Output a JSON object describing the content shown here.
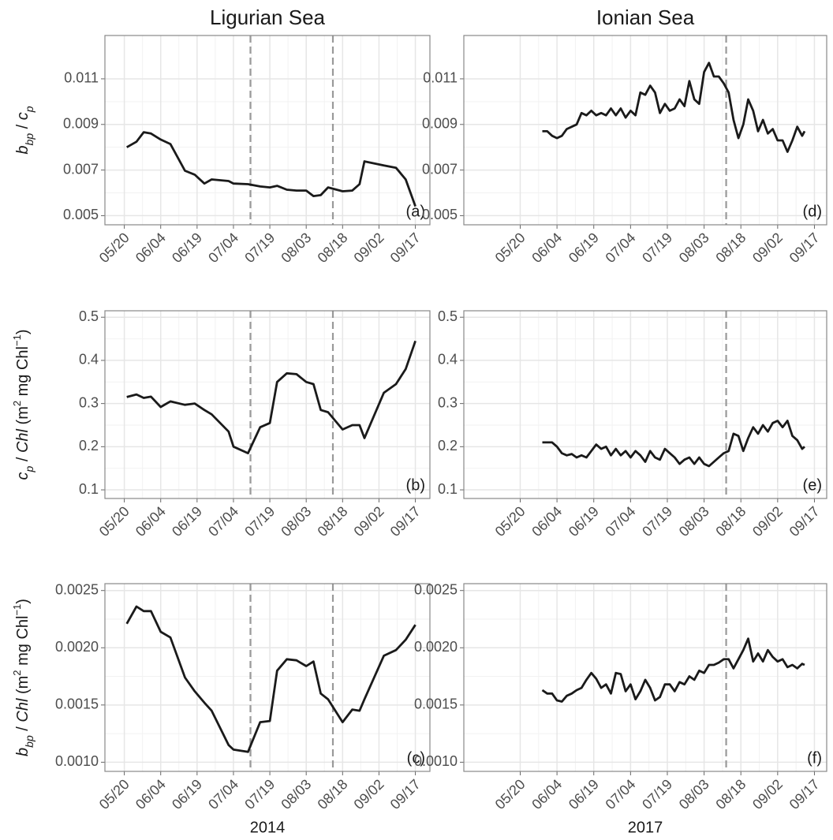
{
  "chart_data": [
    {
      "type": "line",
      "title": "Ligurian Sea",
      "ylabel": [
        {
          "text": "b",
          "italic": true
        },
        {
          "text": "bp",
          "italic": true,
          "sub": true
        },
        {
          "text": " / "
        },
        {
          "text": "c",
          "italic": true
        },
        {
          "text": "p",
          "italic": true,
          "sub": true
        }
      ],
      "panel_label": "(a)",
      "color": "#1a1a1a",
      "x": [
        "05/21",
        "05/25",
        "05/28",
        "05/31",
        "06/04",
        "06/08",
        "06/14",
        "06/18",
        "06/22",
        "06/25",
        "07/02",
        "07/04",
        "07/10",
        "07/15",
        "07/19",
        "07/22",
        "07/26",
        "07/30",
        "08/03",
        "08/06",
        "08/09",
        "08/12",
        "08/18",
        "08/22",
        "08/25",
        "08/27",
        "09/04",
        "09/09",
        "09/13",
        "09/17"
      ],
      "values": [
        0.008,
        0.00824,
        0.00866,
        0.0086,
        0.00834,
        0.00814,
        0.00697,
        0.0068,
        0.00641,
        0.00659,
        0.00652,
        0.00641,
        0.00638,
        0.00628,
        0.00624,
        0.00631,
        0.00614,
        0.0061,
        0.0061,
        0.00586,
        0.0059,
        0.00624,
        0.00607,
        0.0061,
        0.00638,
        0.00738,
        0.0072,
        0.0071,
        0.00659,
        0.00541
      ],
      "vlines": [
        "07/11",
        "08/14"
      ],
      "xlim": [
        "05/12",
        "09/23"
      ],
      "xticks": [
        "05/20",
        "06/04",
        "06/19",
        "07/04",
        "07/19",
        "08/03",
        "08/18",
        "09/02",
        "09/17"
      ],
      "ylim": [
        0.0046,
        0.0129
      ],
      "yticks": [
        0.005,
        0.007,
        0.009,
        0.011
      ],
      "grid": true,
      "minor_grid": true
    },
    {
      "type": "line",
      "ylabel": [
        {
          "text": "c",
          "italic": true
        },
        {
          "text": "p",
          "italic": true,
          "sub": true
        },
        {
          "text": " / "
        },
        {
          "text": "Chl",
          "italic": true
        },
        {
          "text": " (m"
        },
        {
          "text": "2",
          "sup": true
        },
        {
          "text": " mg Chl"
        },
        {
          "text": "−1",
          "sup": true
        },
        {
          "text": ")"
        }
      ],
      "panel_label": "(b)",
      "color": "#1a1a1a",
      "x": [
        "05/21",
        "05/25",
        "05/28",
        "05/31",
        "06/04",
        "06/08",
        "06/14",
        "06/18",
        "06/22",
        "06/25",
        "07/02",
        "07/04",
        "07/10",
        "07/15",
        "07/19",
        "07/22",
        "07/26",
        "07/30",
        "08/03",
        "08/06",
        "08/09",
        "08/12",
        "08/18",
        "08/22",
        "08/25",
        "08/27",
        "09/04",
        "09/09",
        "09/13",
        "09/17"
      ],
      "values": [
        0.315,
        0.321,
        0.313,
        0.316,
        0.292,
        0.305,
        0.297,
        0.3,
        0.285,
        0.275,
        0.235,
        0.2,
        0.185,
        0.245,
        0.255,
        0.35,
        0.37,
        0.368,
        0.35,
        0.345,
        0.285,
        0.28,
        0.24,
        0.25,
        0.25,
        0.22,
        0.325,
        0.345,
        0.38,
        0.445
      ],
      "vlines": [
        "07/11",
        "08/14"
      ],
      "xlim": [
        "05/12",
        "09/23"
      ],
      "xticks": [
        "05/20",
        "06/04",
        "06/19",
        "07/04",
        "07/19",
        "08/03",
        "08/18",
        "09/02",
        "09/17"
      ],
      "ylim": [
        0.08,
        0.515
      ],
      "yticks": [
        0.1,
        0.2,
        0.3,
        0.4,
        0.5
      ],
      "grid": true,
      "minor_grid": true
    },
    {
      "type": "line",
      "xlabel": "2014",
      "ylabel": [
        {
          "text": "b",
          "italic": true
        },
        {
          "text": "bp",
          "italic": true,
          "sub": true
        },
        {
          "text": " / "
        },
        {
          "text": "Chl",
          "italic": true
        },
        {
          "text": " (m"
        },
        {
          "text": "2",
          "sup": true
        },
        {
          "text": " mg Chl"
        },
        {
          "text": "−1",
          "sup": true
        },
        {
          "text": ")"
        }
      ],
      "panel_label": "(c)",
      "color": "#1a1a1a",
      "x": [
        "05/21",
        "05/25",
        "05/28",
        "05/31",
        "06/04",
        "06/08",
        "06/14",
        "06/18",
        "06/22",
        "06/25",
        "07/02",
        "07/04",
        "07/10",
        "07/15",
        "07/19",
        "07/22",
        "07/26",
        "07/30",
        "08/03",
        "08/06",
        "08/09",
        "08/12",
        "08/18",
        "08/22",
        "08/25",
        "08/27",
        "09/04",
        "09/09",
        "09/13",
        "09/17"
      ],
      "values": [
        0.00221,
        0.00236,
        0.00232,
        0.00232,
        0.00214,
        0.00209,
        0.00174,
        0.00162,
        0.00152,
        0.00145,
        0.00115,
        0.00111,
        0.00109,
        0.00135,
        0.00136,
        0.0018,
        0.0019,
        0.00189,
        0.00184,
        0.00188,
        0.0016,
        0.00155,
        0.00135,
        0.00146,
        0.00145,
        0.00155,
        0.00193,
        0.00198,
        0.00207,
        0.0022
      ],
      "vlines": [
        "07/11",
        "08/14"
      ],
      "xlim": [
        "05/12",
        "09/23"
      ],
      "xticks": [
        "05/20",
        "06/04",
        "06/19",
        "07/04",
        "07/19",
        "08/03",
        "08/18",
        "09/02",
        "09/17"
      ],
      "ylim": [
        0.00092,
        0.00256
      ],
      "yticks": [
        {
          "value": 0.001,
          "label": "0.0010"
        },
        0.0015,
        {
          "value": 0.002,
          "label": "0.0020"
        },
        0.0025
      ],
      "grid": true,
      "minor_grid": true
    },
    {
      "type": "line",
      "title": "Ionian Sea",
      "panel_label": "(d)",
      "color": "#1a1a1a",
      "x": [
        "05/29",
        "05/31",
        "06/02",
        "06/04",
        "06/06",
        "06/08",
        "06/10",
        "06/12",
        "06/14",
        "06/16",
        "06/18",
        "06/20",
        "06/22",
        "06/24",
        "06/26",
        "06/28",
        "06/30",
        "07/02",
        "07/04",
        "07/06",
        "07/08",
        "07/10",
        "07/12",
        "07/14",
        "07/16",
        "07/18",
        "07/20",
        "07/22",
        "07/24",
        "07/26",
        "07/28",
        "07/30",
        "08/01",
        "08/03",
        "08/05",
        "08/07",
        "08/09",
        "08/11",
        "08/13",
        "08/15",
        "08/17",
        "08/19",
        "08/21",
        "08/23",
        "08/25",
        "08/27",
        "08/29",
        "08/31",
        "09/02",
        "09/04",
        "09/06",
        "09/08",
        "09/10",
        "09/12",
        "09/13"
      ],
      "values": [
        0.0087,
        0.0087,
        0.0085,
        0.0084,
        0.0085,
        0.0088,
        0.0089,
        0.009,
        0.0095,
        0.0094,
        0.0096,
        0.0094,
        0.0095,
        0.0094,
        0.0097,
        0.0094,
        0.0097,
        0.0093,
        0.0096,
        0.0094,
        0.0104,
        0.0103,
        0.0107,
        0.0104,
        0.0095,
        0.0099,
        0.0096,
        0.0097,
        0.0101,
        0.0098,
        0.0109,
        0.0101,
        0.0099,
        0.0113,
        0.0117,
        0.0111,
        0.0111,
        0.0108,
        0.0104,
        0.0092,
        0.0084,
        0.009,
        0.0101,
        0.0096,
        0.0087,
        0.0092,
        0.0086,
        0.0088,
        0.0083,
        0.0083,
        0.0078,
        0.0083,
        0.0089,
        0.0085,
        0.0087
      ],
      "vlines": [
        "08/12"
      ],
      "xlim": [
        "04/27",
        "09/22"
      ],
      "xticks": [
        "05/20",
        "06/04",
        "06/19",
        "07/04",
        "07/19",
        "08/03",
        "08/18",
        "09/02",
        "09/17"
      ],
      "ylim": [
        0.0046,
        0.0129
      ],
      "yticks": [
        0.005,
        0.007,
        0.009,
        0.011
      ],
      "grid": true,
      "minor_grid": true
    },
    {
      "type": "line",
      "panel_label": "(e)",
      "color": "#1a1a1a",
      "x": [
        "05/29",
        "05/31",
        "06/02",
        "06/04",
        "06/06",
        "06/08",
        "06/10",
        "06/12",
        "06/14",
        "06/16",
        "06/18",
        "06/20",
        "06/22",
        "06/24",
        "06/26",
        "06/28",
        "06/30",
        "07/02",
        "07/04",
        "07/06",
        "07/08",
        "07/10",
        "07/12",
        "07/14",
        "07/16",
        "07/18",
        "07/20",
        "07/22",
        "07/24",
        "07/26",
        "07/28",
        "07/30",
        "08/01",
        "08/03",
        "08/05",
        "08/07",
        "08/09",
        "08/11",
        "08/13",
        "08/15",
        "08/17",
        "08/19",
        "08/21",
        "08/23",
        "08/25",
        "08/27",
        "08/29",
        "08/31",
        "09/02",
        "09/04",
        "09/06",
        "09/08",
        "09/10",
        "09/12",
        "09/13"
      ],
      "values": [
        0.21,
        0.21,
        0.21,
        0.2,
        0.185,
        0.18,
        0.183,
        0.175,
        0.18,
        0.175,
        0.19,
        0.205,
        0.195,
        0.2,
        0.18,
        0.195,
        0.18,
        0.19,
        0.175,
        0.19,
        0.18,
        0.165,
        0.19,
        0.175,
        0.17,
        0.195,
        0.185,
        0.175,
        0.16,
        0.17,
        0.175,
        0.16,
        0.175,
        0.16,
        0.155,
        0.165,
        0.175,
        0.185,
        0.19,
        0.23,
        0.225,
        0.19,
        0.22,
        0.245,
        0.23,
        0.25,
        0.235,
        0.255,
        0.26,
        0.245,
        0.26,
        0.225,
        0.215,
        0.195,
        0.2
      ],
      "vlines": [
        "08/12"
      ],
      "xlim": [
        "04/27",
        "09/22"
      ],
      "xticks": [
        "05/20",
        "06/04",
        "06/19",
        "07/04",
        "07/19",
        "08/03",
        "08/18",
        "09/02",
        "09/17"
      ],
      "ylim": [
        0.08,
        0.515
      ],
      "yticks": [
        0.1,
        0.2,
        0.3,
        0.4,
        0.5
      ],
      "grid": true,
      "minor_grid": true
    },
    {
      "type": "line",
      "xlabel": "2017",
      "panel_label": "(f)",
      "color": "#1a1a1a",
      "x": [
        "05/29",
        "05/31",
        "06/02",
        "06/04",
        "06/06",
        "06/08",
        "06/10",
        "06/12",
        "06/14",
        "06/16",
        "06/18",
        "06/20",
        "06/22",
        "06/24",
        "06/26",
        "06/28",
        "06/30",
        "07/02",
        "07/04",
        "07/06",
        "07/08",
        "07/10",
        "07/12",
        "07/14",
        "07/16",
        "07/18",
        "07/20",
        "07/22",
        "07/24",
        "07/26",
        "07/28",
        "07/30",
        "08/01",
        "08/03",
        "08/05",
        "08/07",
        "08/09",
        "08/11",
        "08/13",
        "08/15",
        "08/17",
        "08/19",
        "08/21",
        "08/23",
        "08/25",
        "08/27",
        "08/29",
        "08/31",
        "09/02",
        "09/04",
        "09/06",
        "09/08",
        "09/10",
        "09/12",
        "09/13"
      ],
      "values": [
        0.00163,
        0.0016,
        0.0016,
        0.00154,
        0.00153,
        0.00158,
        0.0016,
        0.00163,
        0.00165,
        0.00172,
        0.00178,
        0.00173,
        0.00165,
        0.00168,
        0.0016,
        0.00178,
        0.00177,
        0.00162,
        0.00168,
        0.00155,
        0.00162,
        0.00172,
        0.00165,
        0.00154,
        0.00157,
        0.00168,
        0.00168,
        0.00162,
        0.0017,
        0.00168,
        0.00175,
        0.00172,
        0.0018,
        0.00178,
        0.00185,
        0.00185,
        0.00187,
        0.0019,
        0.0019,
        0.00182,
        0.0019,
        0.00198,
        0.00208,
        0.00188,
        0.00195,
        0.00188,
        0.00198,
        0.00192,
        0.00188,
        0.0019,
        0.00183,
        0.00185,
        0.00182,
        0.00186,
        0.00185
      ],
      "vlines": [
        "08/12"
      ],
      "xlim": [
        "04/27",
        "09/22"
      ],
      "xticks": [
        "05/20",
        "06/04",
        "06/19",
        "07/04",
        "07/19",
        "08/03",
        "08/18",
        "09/02",
        "09/17"
      ],
      "ylim": [
        0.00092,
        0.00256
      ],
      "yticks": [
        {
          "value": 0.001,
          "label": "0.0010"
        },
        0.0015,
        {
          "value": 0.002,
          "label": "0.0020"
        },
        0.0025
      ],
      "grid": true,
      "minor_grid": true
    }
  ]
}
